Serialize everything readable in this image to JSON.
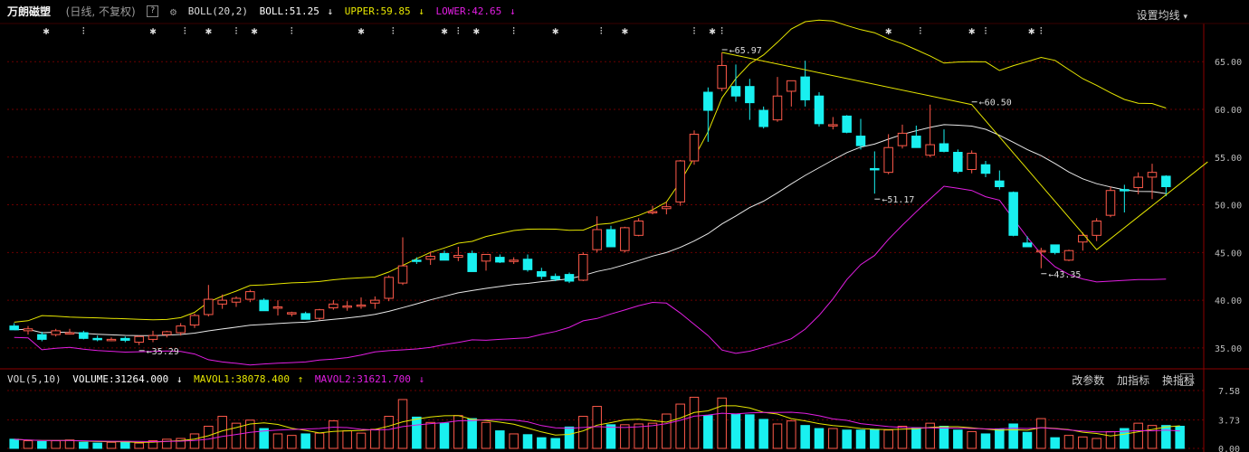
{
  "header": {
    "stock_name": "万朗磁塑",
    "period": "(日线, 不复权)",
    "help_label": "?",
    "boll_name": "BOLL(20,2)",
    "boll": "BOLL:51.25",
    "upper": "UPPER:59.85",
    "lower": "LOWER:42.65",
    "arrow_down": "↓",
    "set_ma": "设置均线",
    "set_ma_arrow": "▾"
  },
  "colors": {
    "up": "#ff5a4a",
    "down": "#19f0f0",
    "boll": "#e8e8e8",
    "upper": "#e6e600",
    "lower": "#e21ee2",
    "grid": "#6b0000",
    "zigzag": "#e6e600"
  },
  "axis": {
    "price_ticks": [
      "65.00",
      "60.00",
      "55.00",
      "50.00",
      "45.00",
      "40.00",
      "35.00"
    ],
    "volume_ticks": [
      "7.58",
      "3.73",
      "0.00"
    ]
  },
  "annotations": {
    "high": "65.97",
    "low": "35.29",
    "peak2": "60.50",
    "trough2": "51.17",
    "trough3": "43.35"
  },
  "volume_header": {
    "name": "VOL(5,10)",
    "volume": "VOLUME:31264.000",
    "mavol1": "MAVOL1:38078.400",
    "mavol2": "MAVOL2:31621.700",
    "arrow_down": "↓",
    "arrow_up": "↑"
  },
  "volume_buttons": {
    "modify": "改参数",
    "add": "加指标",
    "switch": "换指标",
    "close": "✕"
  },
  "chart_data": {
    "type": "candlestick",
    "ylim": [
      33,
      69
    ],
    "vol_ylim": [
      0,
      7.58
    ],
    "candles": [
      {
        "o": 37.3,
        "h": 37.6,
        "l": 36.9,
        "c": 36.9
      },
      {
        "o": 36.8,
        "h": 37.3,
        "l": 36.4,
        "c": 37.0
      },
      {
        "o": 36.4,
        "h": 36.7,
        "l": 35.7,
        "c": 35.9
      },
      {
        "o": 36.4,
        "h": 37.0,
        "l": 36.2,
        "c": 36.8
      },
      {
        "o": 36.6,
        "h": 37.0,
        "l": 36.4,
        "c": 36.6
      },
      {
        "o": 36.6,
        "h": 36.8,
        "l": 35.9,
        "c": 36.0
      },
      {
        "o": 36.0,
        "h": 36.3,
        "l": 35.7,
        "c": 35.9
      },
      {
        "o": 35.9,
        "h": 36.1,
        "l": 35.7,
        "c": 35.9
      },
      {
        "o": 36.0,
        "h": 36.2,
        "l": 35.6,
        "c": 35.8
      },
      {
        "o": 35.6,
        "h": 36.3,
        "l": 35.3,
        "c": 36.2
      },
      {
        "o": 35.9,
        "h": 36.8,
        "l": 35.6,
        "c": 36.3
      },
      {
        "o": 36.4,
        "h": 36.8,
        "l": 36.1,
        "c": 36.7
      },
      {
        "o": 36.6,
        "h": 37.6,
        "l": 36.3,
        "c": 37.3
      },
      {
        "o": 37.4,
        "h": 38.6,
        "l": 37.1,
        "c": 38.4
      },
      {
        "o": 38.5,
        "h": 41.6,
        "l": 38.3,
        "c": 40.1
      },
      {
        "o": 39.6,
        "h": 40.6,
        "l": 39.1,
        "c": 40.0
      },
      {
        "o": 39.8,
        "h": 40.4,
        "l": 39.3,
        "c": 40.2
      },
      {
        "o": 40.1,
        "h": 41.1,
        "l": 39.8,
        "c": 40.9
      },
      {
        "o": 40.0,
        "h": 40.2,
        "l": 38.9,
        "c": 38.9
      },
      {
        "o": 39.3,
        "h": 40.0,
        "l": 38.4,
        "c": 39.3
      },
      {
        "o": 38.6,
        "h": 38.8,
        "l": 38.3,
        "c": 38.7
      },
      {
        "o": 38.6,
        "h": 38.8,
        "l": 38.0,
        "c": 38.0
      },
      {
        "o": 38.1,
        "h": 39.1,
        "l": 37.9,
        "c": 39.0
      },
      {
        "o": 39.2,
        "h": 40.0,
        "l": 39.0,
        "c": 39.6
      },
      {
        "o": 39.4,
        "h": 39.9,
        "l": 38.9,
        "c": 39.4
      },
      {
        "o": 39.5,
        "h": 40.3,
        "l": 39.1,
        "c": 39.5
      },
      {
        "o": 39.7,
        "h": 40.4,
        "l": 39.1,
        "c": 40.0
      },
      {
        "o": 40.2,
        "h": 42.6,
        "l": 39.9,
        "c": 42.4
      },
      {
        "o": 41.8,
        "h": 46.6,
        "l": 41.6,
        "c": 43.6
      },
      {
        "o": 44.2,
        "h": 44.5,
        "l": 43.8,
        "c": 44.1
      },
      {
        "o": 44.3,
        "h": 45.1,
        "l": 43.7,
        "c": 44.6
      },
      {
        "o": 44.9,
        "h": 45.2,
        "l": 44.2,
        "c": 44.2
      },
      {
        "o": 44.5,
        "h": 45.6,
        "l": 44.1,
        "c": 44.7
      },
      {
        "o": 44.9,
        "h": 45.2,
        "l": 43.3,
        "c": 43.0
      },
      {
        "o": 44.1,
        "h": 44.8,
        "l": 43.1,
        "c": 44.8
      },
      {
        "o": 44.5,
        "h": 44.8,
        "l": 43.9,
        "c": 44.0
      },
      {
        "o": 44.2,
        "h": 44.5,
        "l": 43.8,
        "c": 44.2
      },
      {
        "o": 44.3,
        "h": 44.8,
        "l": 43.0,
        "c": 43.2
      },
      {
        "o": 43.0,
        "h": 43.4,
        "l": 42.2,
        "c": 42.5
      },
      {
        "o": 42.5,
        "h": 42.8,
        "l": 42.0,
        "c": 42.2
      },
      {
        "o": 42.7,
        "h": 42.9,
        "l": 41.8,
        "c": 42.0
      },
      {
        "o": 42.1,
        "h": 45.0,
        "l": 42.0,
        "c": 44.8
      },
      {
        "o": 45.3,
        "h": 48.8,
        "l": 45.0,
        "c": 47.4
      },
      {
        "o": 47.4,
        "h": 47.8,
        "l": 45.6,
        "c": 45.6
      },
      {
        "o": 45.2,
        "h": 47.7,
        "l": 45.0,
        "c": 47.6
      },
      {
        "o": 46.8,
        "h": 48.6,
        "l": 46.7,
        "c": 48.3
      },
      {
        "o": 49.3,
        "h": 49.9,
        "l": 49.0,
        "c": 49.3
      },
      {
        "o": 49.6,
        "h": 50.3,
        "l": 49.0,
        "c": 49.8
      },
      {
        "o": 50.3,
        "h": 54.7,
        "l": 49.9,
        "c": 54.6
      },
      {
        "o": 54.6,
        "h": 57.8,
        "l": 54.2,
        "c": 57.4
      },
      {
        "o": 61.8,
        "h": 62.3,
        "l": 56.6,
        "c": 59.9
      },
      {
        "o": 62.2,
        "h": 65.97,
        "l": 61.9,
        "c": 64.6
      },
      {
        "o": 62.4,
        "h": 64.7,
        "l": 60.8,
        "c": 61.4
      },
      {
        "o": 62.4,
        "h": 63.2,
        "l": 58.9,
        "c": 60.7
      },
      {
        "o": 59.9,
        "h": 60.3,
        "l": 58.0,
        "c": 58.2
      },
      {
        "o": 58.9,
        "h": 63.4,
        "l": 58.7,
        "c": 61.4
      },
      {
        "o": 61.9,
        "h": 63.0,
        "l": 60.3,
        "c": 63.0
      },
      {
        "o": 63.4,
        "h": 65.1,
        "l": 60.3,
        "c": 61.0
      },
      {
        "o": 61.4,
        "h": 61.8,
        "l": 58.2,
        "c": 58.5
      },
      {
        "o": 58.4,
        "h": 59.2,
        "l": 57.9,
        "c": 58.4
      },
      {
        "o": 59.3,
        "h": 59.4,
        "l": 57.5,
        "c": 57.6
      },
      {
        "o": 57.2,
        "h": 59.0,
        "l": 55.8,
        "c": 56.2
      },
      {
        "o": 53.8,
        "h": 55.6,
        "l": 51.17,
        "c": 53.7
      },
      {
        "o": 53.4,
        "h": 57.4,
        "l": 53.2,
        "c": 56.0
      },
      {
        "o": 56.2,
        "h": 58.4,
        "l": 55.9,
        "c": 57.5
      },
      {
        "o": 57.2,
        "h": 58.3,
        "l": 56.0,
        "c": 56.0
      },
      {
        "o": 55.2,
        "h": 60.5,
        "l": 55.0,
        "c": 56.3
      },
      {
        "o": 56.4,
        "h": 57.9,
        "l": 55.5,
        "c": 55.6
      },
      {
        "o": 55.5,
        "h": 55.8,
        "l": 53.3,
        "c": 53.5
      },
      {
        "o": 53.7,
        "h": 55.7,
        "l": 53.3,
        "c": 55.4
      },
      {
        "o": 54.2,
        "h": 54.6,
        "l": 52.9,
        "c": 53.3
      },
      {
        "o": 52.5,
        "h": 53.6,
        "l": 51.6,
        "c": 51.9
      },
      {
        "o": 51.3,
        "h": 51.4,
        "l": 46.7,
        "c": 46.8
      },
      {
        "o": 46.0,
        "h": 46.7,
        "l": 45.7,
        "c": 45.6
      },
      {
        "o": 45.2,
        "h": 45.5,
        "l": 43.35,
        "c": 45.2
      },
      {
        "o": 45.8,
        "h": 45.8,
        "l": 44.8,
        "c": 45.0
      },
      {
        "o": 44.2,
        "h": 45.3,
        "l": 44.1,
        "c": 45.2
      },
      {
        "o": 46.1,
        "h": 47.1,
        "l": 45.2,
        "c": 46.8
      },
      {
        "o": 46.8,
        "h": 48.6,
        "l": 46.2,
        "c": 48.3
      },
      {
        "o": 48.9,
        "h": 51.9,
        "l": 48.7,
        "c": 51.5
      },
      {
        "o": 51.6,
        "h": 52.1,
        "l": 49.2,
        "c": 51.5
      },
      {
        "o": 51.8,
        "h": 53.4,
        "l": 51.1,
        "c": 52.9
      },
      {
        "o": 52.9,
        "h": 54.3,
        "l": 50.6,
        "c": 53.4
      },
      {
        "o": 53.0,
        "h": 53.1,
        "l": 50.9,
        "c": 51.9
      }
    ],
    "volume": [
      1.2,
      1.0,
      0.9,
      1.0,
      1.1,
      0.8,
      0.7,
      0.8,
      0.9,
      0.7,
      1.0,
      1.2,
      1.3,
      1.9,
      2.9,
      4.2,
      3.3,
      3.7,
      2.6,
      1.9,
      1.7,
      1.9,
      2.0,
      3.6,
      2.3,
      2.0,
      2.5,
      4.2,
      6.4,
      4.1,
      3.4,
      3.3,
      4.3,
      3.9,
      3.4,
      2.3,
      1.9,
      1.8,
      1.4,
      1.3,
      2.8,
      4.2,
      5.5,
      3.1,
      3.1,
      3.2,
      3.3,
      4.5,
      5.8,
      6.7,
      4.3,
      6.6,
      4.5,
      4.4,
      3.8,
      3.2,
      3.6,
      3.0,
      2.6,
      2.6,
      2.4,
      2.4,
      2.5,
      2.4,
      2.9,
      2.7,
      3.3,
      2.9,
      2.4,
      2.2,
      1.9,
      2.5,
      3.2,
      2.1,
      3.9,
      1.4,
      1.7,
      1.5,
      1.3,
      2.2,
      2.6,
      3.3,
      3.0,
      3.0,
      2.9
    ],
    "zigzag": [
      [
        51,
        65.97
      ],
      [
        69,
        60.5
      ],
      [
        78,
        45.3
      ],
      [
        86,
        54.5
      ]
    ]
  }
}
